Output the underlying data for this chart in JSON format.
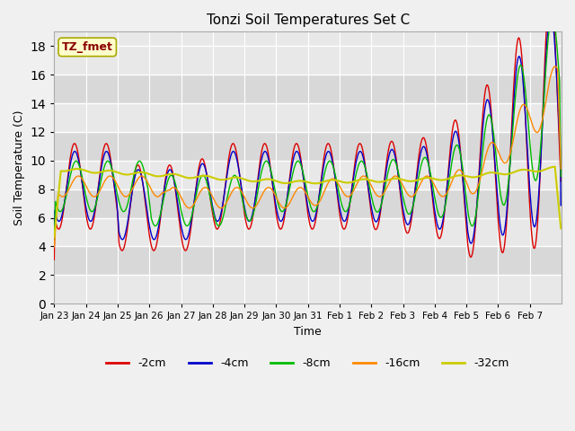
{
  "title": "Tonzi Soil Temperatures Set C",
  "xlabel": "Time",
  "ylabel": "Soil Temperature (C)",
  "ylim": [
    0,
    19
  ],
  "yticks": [
    0,
    2,
    4,
    6,
    8,
    10,
    12,
    14,
    16,
    18
  ],
  "xtick_labels": [
    "Jan 23",
    "Jan 24",
    "Jan 25",
    "Jan 26",
    "Jan 27",
    "Jan 28",
    "Jan 29",
    "Jan 30",
    "Jan 31",
    "Feb 1",
    "Feb 2",
    "Feb 3",
    "Feb 4",
    "Feb 5",
    "Feb 6",
    "Feb 7"
  ],
  "series": {
    "-2cm": {
      "color": "#dd0000",
      "lw": 1.0
    },
    "-4cm": {
      "color": "#0000cc",
      "lw": 1.0
    },
    "-8cm": {
      "color": "#00bb00",
      "lw": 1.0
    },
    "-16cm": {
      "color": "#ff8800",
      "lw": 1.0
    },
    "-32cm": {
      "color": "#cccc00",
      "lw": 1.5
    }
  },
  "legend_label": "TZ_fmet",
  "legend_bg": "#ffffcc",
  "legend_border": "#aaaa00",
  "fig_bg": "#f0f0f0",
  "plot_bg_light": "#e8e8e8",
  "plot_bg_dark": "#d8d8d8",
  "grid_color": "#ffffff",
  "n_points_per_day": 48
}
